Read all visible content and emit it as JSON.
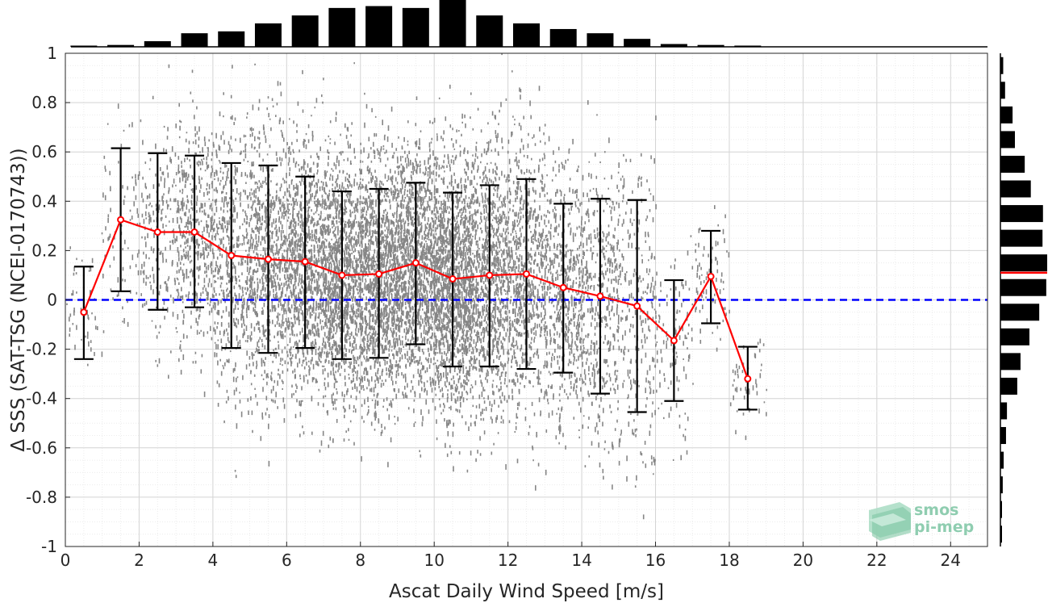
{
  "chart_data": {
    "type": "scatter",
    "title": "",
    "xlabel": "Ascat Daily Wind Speed [m/s]",
    "ylabel": "Δ SSS (SAT-TSG (NCEI-0170743))",
    "xlim": [
      0,
      25
    ],
    "ylim": [
      -1,
      1
    ],
    "xticks": [
      0,
      2,
      4,
      6,
      8,
      10,
      12,
      14,
      16,
      18,
      20,
      22,
      24
    ],
    "yticks": [
      -1,
      -0.8,
      -0.6,
      -0.4,
      -0.2,
      0,
      0.2,
      0.4,
      0.6,
      0.8,
      1
    ],
    "ytick_labels": [
      "-1",
      "-0.8",
      "-0.6",
      "-0.4",
      "-0.2",
      "0",
      "0.2",
      "0.4",
      "0.6",
      "0.8",
      "1"
    ],
    "grid": true,
    "scatter_color": "#808080",
    "zero_line": {
      "y": 0,
      "color": "#0000ff",
      "style": "dashed"
    },
    "binned_mean": {
      "color": "#ff0000",
      "x": [
        0.5,
        1.5,
        2.5,
        3.5,
        4.5,
        5.5,
        6.5,
        7.5,
        8.5,
        9.5,
        10.5,
        11.5,
        12.5,
        13.5,
        14.5,
        15.5,
        16.5,
        17.5,
        18.5
      ],
      "y": [
        -0.05,
        0.325,
        0.275,
        0.275,
        0.18,
        0.165,
        0.155,
        0.1,
        0.105,
        0.15,
        0.085,
        0.1,
        0.105,
        0.05,
        0.015,
        -0.025,
        -0.165,
        0.095,
        -0.32
      ],
      "err_low": [
        -0.24,
        0.035,
        -0.04,
        -0.03,
        -0.195,
        -0.215,
        -0.195,
        -0.24,
        -0.235,
        -0.18,
        -0.27,
        -0.27,
        -0.28,
        -0.295,
        -0.38,
        -0.455,
        -0.41,
        -0.095,
        -0.445
      ],
      "err_high": [
        0.135,
        0.615,
        0.595,
        0.585,
        0.555,
        0.545,
        0.5,
        0.44,
        0.45,
        0.475,
        0.435,
        0.465,
        0.49,
        0.39,
        0.41,
        0.405,
        0.08,
        0.28,
        -0.19
      ]
    },
    "histogram_x": {
      "bin_centers": [
        0.5,
        1.5,
        2.5,
        3.5,
        4.5,
        5.5,
        6.5,
        7.5,
        8.5,
        9.5,
        10.5,
        11.5,
        12.5,
        13.5,
        14.5,
        15.5,
        16.5,
        17.5,
        18.5
      ],
      "counts": [
        0.02,
        0.04,
        0.12,
        0.29,
        0.33,
        0.5,
        0.67,
        0.83,
        0.87,
        0.83,
        1.0,
        0.67,
        0.5,
        0.38,
        0.29,
        0.17,
        0.06,
        0.04,
        0.02
      ]
    },
    "histogram_y": {
      "bin_centers": [
        -0.95,
        -0.85,
        -0.75,
        -0.65,
        -0.55,
        -0.45,
        -0.35,
        -0.25,
        -0.15,
        -0.05,
        0.05,
        0.15,
        0.25,
        0.35,
        0.45,
        0.55,
        0.65,
        0.75,
        0.85,
        0.95
      ],
      "counts": [
        0.03,
        0.03,
        0.05,
        0.07,
        0.12,
        0.14,
        0.36,
        0.43,
        0.62,
        0.83,
        0.98,
        1.0,
        0.9,
        0.91,
        0.65,
        0.52,
        0.31,
        0.26,
        0.1,
        0.06
      ],
      "mean_marker": {
        "y": 0.11,
        "color": "#ff0000"
      }
    },
    "watermark": {
      "line1": "smos",
      "line2": "pi-mep"
    }
  }
}
